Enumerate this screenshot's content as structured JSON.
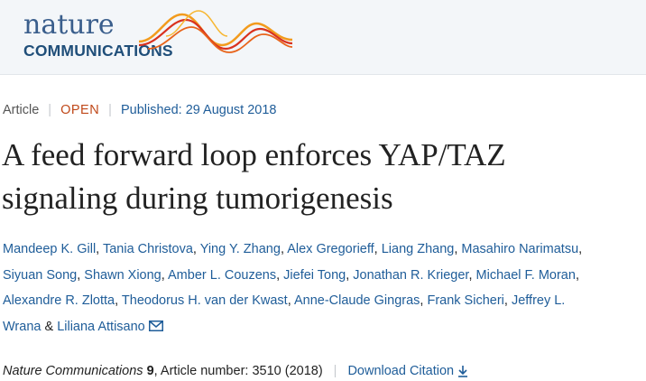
{
  "header": {
    "logo_line1": "nature",
    "logo_line2": "COMMUNICATIONS"
  },
  "article_meta": {
    "type": "Article",
    "access": "OPEN",
    "published": "Published: 29 August 2018",
    "separator": "|"
  },
  "title": {
    "line1": "A feed forward loop enforces YAP/TAZ",
    "line2": "signaling during tumorigenesis"
  },
  "authors": [
    "Mandeep K. Gill",
    "Tania Christova",
    "Ying Y. Zhang",
    "Alex Gregorieff",
    "Liang Zhang",
    "Masahiro Narimatsu",
    "Siyuan Song",
    "Shawn Xiong",
    "Amber L. Couzens",
    "Jiefei Tong",
    "Jonathan R. Krieger",
    "Michael F. Moran",
    "Alexandre R. Zlotta",
    "Theodorus H. van der Kwast",
    "Anne-Claude Gingras",
    "Frank Sicheri",
    "Jeffrey L.",
    "Wrana",
    "Liliana Attisano"
  ],
  "author_separators": {
    "comma": ", ",
    "and": " & "
  },
  "citation": {
    "journal": "Nature Communications",
    "volume": "9",
    "rest": ", Article number: 3510 (2018)",
    "download_label": "Download Citation"
  },
  "colors": {
    "link": "#1f5d99",
    "open_badge": "#c0491a",
    "header_bg": "#f3f6f9",
    "logo_wave_red": "#d9321f",
    "logo_wave_orange": "#f29b1d"
  },
  "icons": {
    "logo_art": "sine-wave-logo-icon",
    "corresponding_author": "envelope-icon",
    "download": "download-arrow-icon"
  }
}
